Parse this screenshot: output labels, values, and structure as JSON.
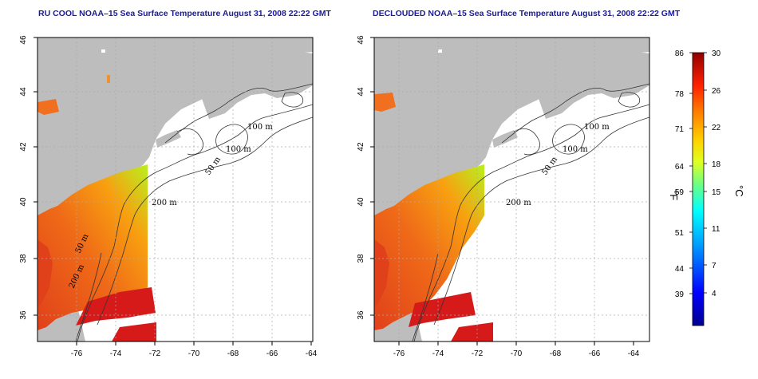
{
  "panels": [
    {
      "title": "RU COOL NOAA–15 Sea Surface Temperature August 31, 2008 22:22 GMT"
    },
    {
      "title": "DECLOUDED NOAA–15 Sea Surface Temperature August 31, 2008 22:22 GMT"
    }
  ],
  "map": {
    "lon_ticks": [
      "-76",
      "-74",
      "-72",
      "-70",
      "-68",
      "-66",
      "-64"
    ],
    "lat_ticks": [
      "36",
      "38",
      "40",
      "42",
      "44",
      "46"
    ],
    "contour_labels": [
      "100 m",
      "100 m",
      "50 m",
      "200 m",
      "50 m",
      "200 m"
    ],
    "colors": {
      "land": "#bdbdbd",
      "ocean_nodata": "#ffffff",
      "warm": "#e8541c",
      "hot": "#d61a1a"
    }
  },
  "colorbar": {
    "fahrenheit": [
      "86",
      "78",
      "71",
      "64",
      "59",
      "51",
      "44",
      "39"
    ],
    "celsius": [
      "30",
      "26",
      "22",
      "18",
      "15",
      "11",
      "7",
      "4"
    ],
    "f_unit": "°F",
    "c_unit": "°C"
  }
}
